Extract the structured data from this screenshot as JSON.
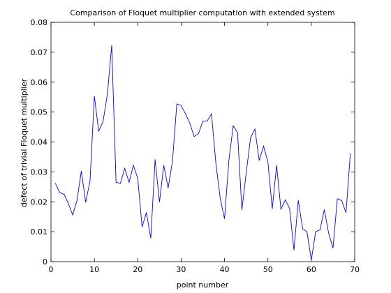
{
  "chart_data": {
    "type": "line",
    "title": "Comparison of Floquet multiplier computation with extended system",
    "xlabel": "point number",
    "ylabel": "defect of trivial Floquet multiplier",
    "xlim": [
      0,
      70
    ],
    "ylim": [
      0,
      0.08
    ],
    "xticks": [
      0,
      10,
      20,
      30,
      40,
      50,
      60,
      70
    ],
    "xtick_labels": [
      "0",
      "10",
      "20",
      "30",
      "40",
      "50",
      "60",
      "70"
    ],
    "yticks": [
      0,
      0.01,
      0.02,
      0.03,
      0.04,
      0.05,
      0.06,
      0.07,
      0.08
    ],
    "ytick_labels": [
      "0",
      "0.01",
      "0.02",
      "0.03",
      "0.04",
      "0.05",
      "0.06",
      "0.07",
      "0.08"
    ],
    "grid": false,
    "series_color": "#0000ff",
    "series": [
      {
        "x": [
          1,
          2,
          3,
          4,
          5,
          6,
          7,
          8,
          9,
          10,
          11,
          12,
          13,
          14,
          15,
          16,
          17,
          18,
          19,
          20,
          21,
          22,
          23,
          24,
          25,
          26,
          27,
          28,
          29,
          30,
          31,
          32,
          33,
          34,
          35,
          36,
          37,
          38,
          39,
          40,
          41,
          42,
          43,
          44,
          45,
          46,
          47,
          48,
          49,
          50,
          51,
          52,
          53,
          54,
          55,
          56,
          57,
          58,
          59,
          60,
          61,
          62,
          63,
          64,
          65,
          66,
          67,
          68,
          69
        ],
        "values": [
          0.0262,
          0.0231,
          0.0225,
          0.0195,
          0.0156,
          0.0205,
          0.0303,
          0.0198,
          0.027,
          0.0553,
          0.0436,
          0.0468,
          0.056,
          0.0723,
          0.0265,
          0.0262,
          0.0312,
          0.0265,
          0.0322,
          0.0278,
          0.0116,
          0.0164,
          0.0078,
          0.0342,
          0.0199,
          0.0322,
          0.0246,
          0.0335,
          0.0527,
          0.0522,
          0.0494,
          0.0463,
          0.0418,
          0.0428,
          0.0469,
          0.047,
          0.0494,
          0.033,
          0.0212,
          0.0143,
          0.0338,
          0.0454,
          0.0431,
          0.0173,
          0.0297,
          0.0414,
          0.0443,
          0.0338,
          0.0386,
          0.0333,
          0.0176,
          0.0322,
          0.0175,
          0.0206,
          0.0178,
          0.0038,
          0.0205,
          0.011,
          0.01,
          0.0005,
          0.01,
          0.0106,
          0.0174,
          0.0095,
          0.0045,
          0.021,
          0.0204,
          0.0163,
          0.0362
        ]
      }
    ]
  }
}
